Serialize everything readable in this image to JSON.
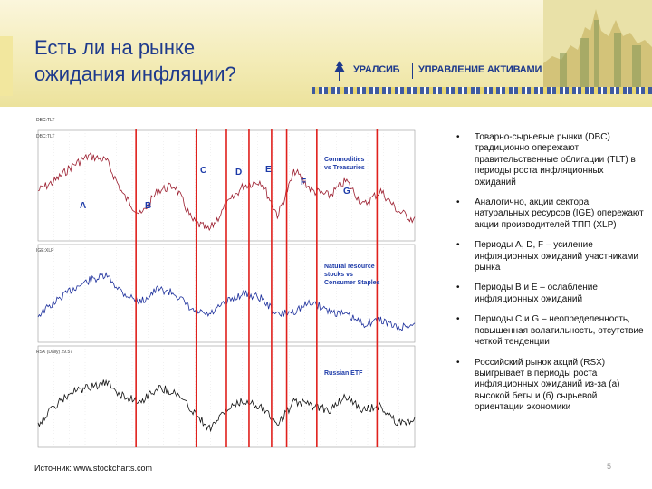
{
  "slide": {
    "title_line1": "Есть ли на рынке",
    "title_line2": "ожидания инфляции?",
    "logo": {
      "brand": "УРАЛСИБ",
      "subtitle": "УПРАВЛЕНИЕ АКТИВАМИ"
    },
    "source": "Источник: www.stockcharts.com",
    "page_number": "5"
  },
  "chart": {
    "caption": "DBC:TLT",
    "panel_labels": [
      "DBC:TLT",
      "IGE:XLP",
      "RSX (Daily) 29.57"
    ],
    "period_letters": [
      "A",
      "B",
      "C",
      "D",
      "E",
      "F",
      "G"
    ],
    "annotations": {
      "commodities": "Commodities\nvs Treasuries",
      "natural_resource": "Natural resource\nstocks vs\nConsumer Staples",
      "russian": "Russian ETF"
    },
    "colors": {
      "line_top": "#9b1d2e",
      "line_mid": "#1c2f9c",
      "line_bottom": "#111111",
      "marker": "#e0201c"
    }
  },
  "bullets": [
    "Товарно-сырьевые рынки (DBC) традиционно опережают правительственные облигации (TLT) в периоды роста инфляционных ожиданий",
    "Аналогично, акции сектора натуральных ресурсов (IGE) опережают акции производителей ТПП (XLP)",
    "Периоды A, D, F – усиление инфляционных ожиданий участниками рынка",
    "Периоды B и E – ослабление инфляционных ожиданий",
    "Периоды C и G – неопределенность, повышенная волатильность, отсутствие четкой тенденции",
    "Российский рынок акций (RSX) выигрывает в периоды роста инфляционных ожиданий из-за (а) высокой беты и (б) сырьевой ориентации экономики"
  ]
}
